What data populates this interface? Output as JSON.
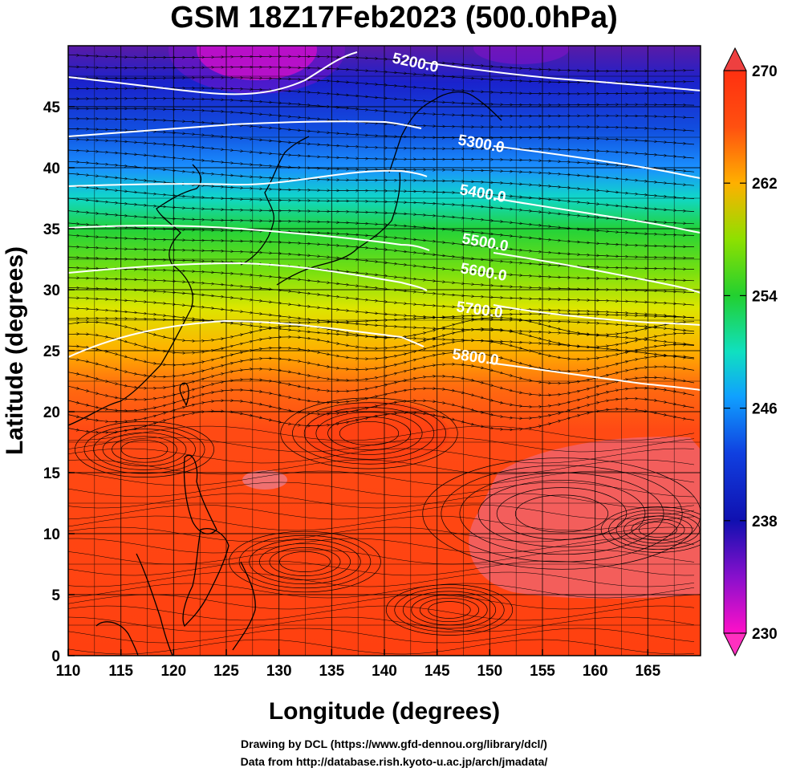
{
  "title": "GSM 18Z17Feb2023 (500.0hPa)",
  "xlabel": "Longitude (degrees)",
  "ylabel": "Latitude  (degrees)",
  "x_ticks": [
    "110",
    "115",
    "120",
    "125",
    "130",
    "135",
    "140",
    "145",
    "150",
    "155",
    "160",
    "165"
  ],
  "y_ticks": [
    "0",
    "5",
    "10",
    "15",
    "20",
    "25",
    "30",
    "35",
    "40",
    "45"
  ],
  "colorbar": {
    "ticks": [
      "230",
      "238",
      "246",
      "254",
      "262",
      "270"
    ],
    "colors": [
      "#ff00cc",
      "#8800dd",
      "#0000cc",
      "#0066ff",
      "#00ccff",
      "#00ff99",
      "#22dd22",
      "#66ff00",
      "#ffff00",
      "#ffaa00",
      "#ff5500",
      "#ff2200",
      "#ee2200"
    ]
  },
  "contours": [
    {
      "label": "5200.0",
      "lat_label": [
        145,
        48.7
      ]
    },
    {
      "label": "5300.0",
      "lat_label": [
        152,
        42.7
      ]
    },
    {
      "label": "5400.0",
      "lat_label": [
        152,
        39.4
      ]
    },
    {
      "label": "5500.0",
      "lat_label": [
        152,
        35.8
      ]
    },
    {
      "label": "5600.0",
      "lat_label": [
        152,
        32.7
      ]
    },
    {
      "label": "5700.0",
      "lat_label": [
        152,
        29.7
      ]
    },
    {
      "label": "5800.0",
      "lat_label": [
        150,
        25.9
      ]
    }
  ],
  "credits": {
    "line1": "Drawing by DCL (https://www.gfd-dennou.org/library/dcl/)",
    "line2": "Data from http://database.rish.kyoto-u.ac.jp/arch/jmadata/"
  },
  "map_data": {
    "lon_range": [
      110,
      170
    ],
    "lat_range": [
      0,
      50
    ],
    "field": "temperature",
    "field_range": [
      230,
      270
    ]
  }
}
